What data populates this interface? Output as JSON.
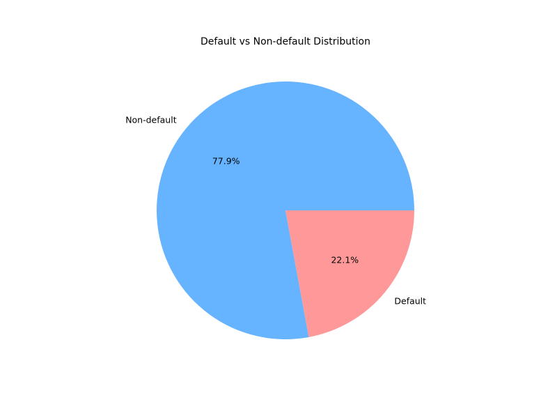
{
  "chart_data": {
    "type": "pie",
    "title": "Default vs Non-default Distribution",
    "categories": [
      "Non-default",
      "Default"
    ],
    "values": [
      77.9,
      22.1
    ],
    "value_labels": [
      "77.9%",
      "22.1%"
    ],
    "colors": [
      "#66b3ff",
      "#ff9999"
    ],
    "start_angle_deg": 0,
    "direction": "counterclockwise",
    "legend": "none"
  }
}
